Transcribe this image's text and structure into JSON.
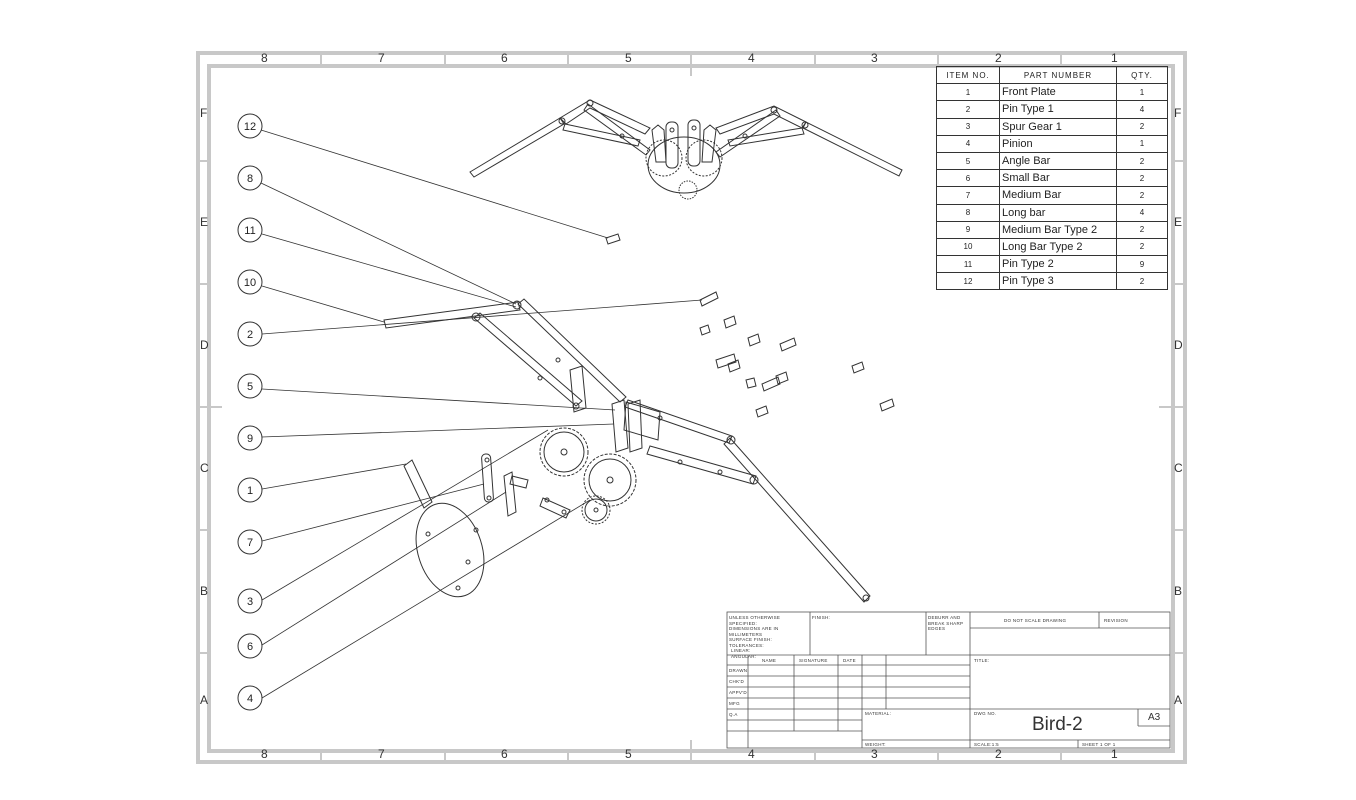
{
  "drawing": {
    "title": "Bird-2",
    "sheet_size": "A3",
    "zone_columns": [
      "8",
      "7",
      "6",
      "5",
      "4",
      "3",
      "2",
      "1"
    ],
    "zone_rows": [
      "F",
      "E",
      "D",
      "C",
      "B",
      "A"
    ]
  },
  "bom": {
    "headers": [
      "ITEM NO.",
      "PART NUMBER",
      "QTY."
    ],
    "rows": [
      {
        "item": "1",
        "part": "Front Plate",
        "qty": "1"
      },
      {
        "item": "2",
        "part": "Pin Type 1",
        "qty": "4"
      },
      {
        "item": "3",
        "part": "Spur Gear 1",
        "qty": "2"
      },
      {
        "item": "4",
        "part": "Pinion",
        "qty": "1"
      },
      {
        "item": "5",
        "part": "Angle Bar",
        "qty": "2"
      },
      {
        "item": "6",
        "part": "Small Bar",
        "qty": "2"
      },
      {
        "item": "7",
        "part": "Medium Bar",
        "qty": "2"
      },
      {
        "item": "8",
        "part": "Long bar",
        "qty": "4"
      },
      {
        "item": "9",
        "part": "Medium Bar Type 2",
        "qty": "2"
      },
      {
        "item": "10",
        "part": "Long Bar Type 2",
        "qty": "2"
      },
      {
        "item": "11",
        "part": "Pin Type 2",
        "qty": "9"
      },
      {
        "item": "12",
        "part": "Pin Type 3",
        "qty": "2"
      }
    ]
  },
  "balloons": [
    "12",
    "8",
    "11",
    "10",
    "2",
    "5",
    "9",
    "1",
    "7",
    "3",
    "6",
    "4"
  ],
  "title_block": {
    "notes": [
      "UNLESS OTHERWISE SPECIFIED:",
      "DIMENSIONS ARE IN MILLIMETERS",
      "SURFACE FINISH:",
      "TOLERANCES:",
      "LINEAR:",
      "ANGULAR:"
    ],
    "finish_label": "FINISH:",
    "deburr": [
      "DEBURR AND",
      "BREAK SHARP",
      "EDGES"
    ],
    "do_not_scale": "DO NOT SCALE DRAWING",
    "revision_label": "REVISION",
    "name_label": "NAME",
    "signature_label": "SIGNATURE",
    "date_label": "DATE",
    "title_label": "TITLE:",
    "roles": [
      "DRAWN",
      "CHK'D",
      "APPV'D",
      "MFG",
      "Q.A"
    ],
    "material_label": "MATERIAL:",
    "dwg_no_label": "DWG NO.",
    "weight_label": "WEIGHT:",
    "scale_label": "SCALE:1:5",
    "sheet_label": "SHEET 1 OF 1"
  }
}
